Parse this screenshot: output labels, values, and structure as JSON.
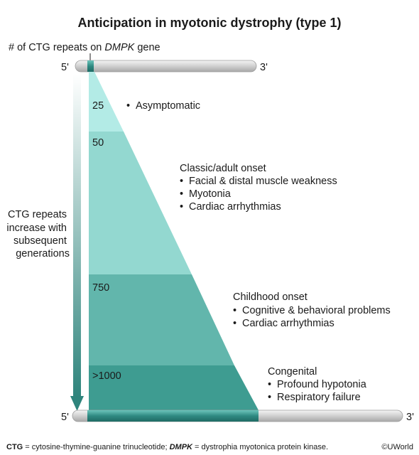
{
  "title": "Anticipation in myotonic dystrophy (type 1)",
  "gene_label": {
    "prefix": "# of CTG repeats on ",
    "gene": "DMPK",
    "suffix": " gene"
  },
  "strand_top": {
    "left": "5'",
    "right": "3'"
  },
  "strand_bottom": {
    "left": "5'",
    "right": "3'"
  },
  "arrow_label": [
    "CTG repeats",
    "increase with",
    "subsequent",
    "generations"
  ],
  "bands": [
    {
      "repeats": "25",
      "heading": "",
      "items": [
        "Asymptomatic"
      ]
    },
    {
      "repeats": "50",
      "heading": "Classic/adult onset",
      "items": [
        "Facial & distal muscle weakness",
        "Myotonia",
        "Cardiac arrhythmias"
      ]
    },
    {
      "repeats": "750",
      "heading": "Childhood onset",
      "items": [
        "Cognitive & behavioral problems",
        "Cardiac arrhythmias"
      ]
    },
    {
      "repeats": ">1000",
      "heading": "Congenital",
      "items": [
        "Profound hypotonia",
        "Respiratory failure"
      ]
    }
  ],
  "bullet": "•",
  "footnote": {
    "abbr1": "CTG",
    "def1": " = cytosine-thymine-guanine trinucleotide; ",
    "abbr2": "DMPK",
    "def2": " = dystrophia myotonica protein kinase."
  },
  "copyright": "©UWorld",
  "colors": {
    "band1": "#b3ebe6",
    "band2": "#93d8d0",
    "band3": "#62b6ac",
    "band4": "#3e9c91",
    "strand": "#d7d7d7",
    "strand_dark": "#2f8a82",
    "arrow_top": "#ffffff",
    "arrow_bottom": "#2e847c"
  }
}
